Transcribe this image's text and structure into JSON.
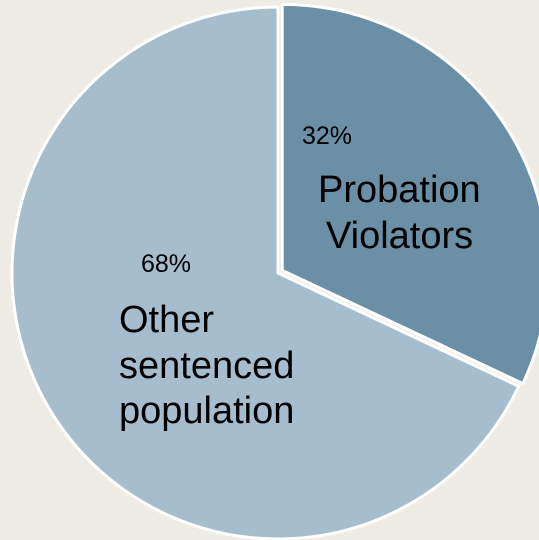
{
  "chart_data": {
    "type": "pie",
    "slices": [
      {
        "label": "Probation Violators",
        "label_lines": [
          "Probation",
          "Violators"
        ],
        "value": 32,
        "value_label": "32%",
        "color": "#6b8fa6"
      },
      {
        "label": "Other sentenced population",
        "label_lines": [
          "Other",
          "sentenced",
          "population"
        ],
        "value": 68,
        "value_label": "68%",
        "color": "#a6bdcd"
      }
    ]
  }
}
